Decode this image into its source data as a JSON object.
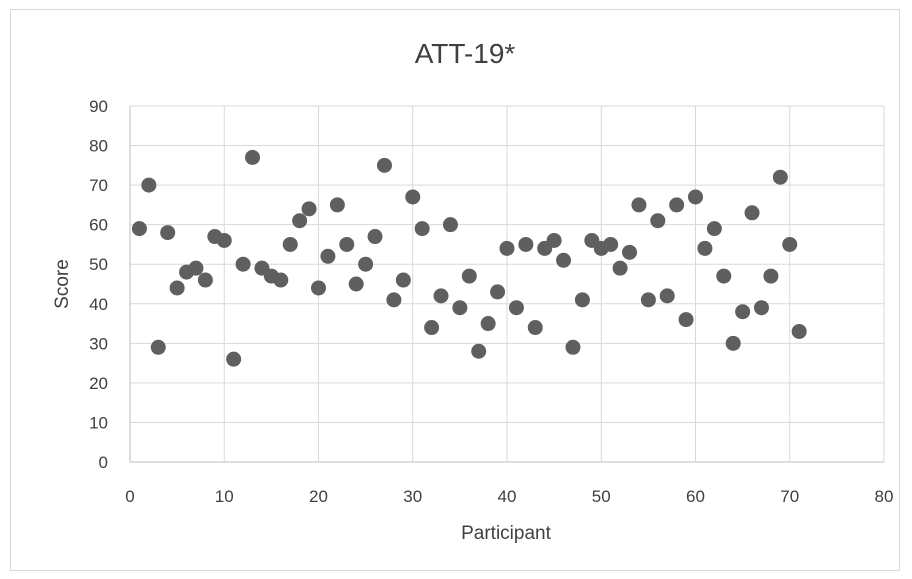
{
  "chart_data": {
    "type": "scatter",
    "title": "ATT-19*",
    "xlabel": "Participant",
    "ylabel": "Score",
    "xlim": [
      0,
      80
    ],
    "ylim": [
      0,
      90
    ],
    "x_ticks": [
      0,
      10,
      20,
      30,
      40,
      50,
      60,
      70,
      80
    ],
    "y_ticks": [
      0,
      10,
      20,
      30,
      40,
      50,
      60,
      70,
      80,
      90
    ],
    "grid": true,
    "legend": "none",
    "marker_color": "#5f5f5f",
    "x": [
      1,
      2,
      3,
      4,
      5,
      6,
      7,
      8,
      9,
      10,
      11,
      12,
      13,
      14,
      15,
      16,
      17,
      18,
      19,
      20,
      21,
      22,
      23,
      24,
      25,
      26,
      27,
      28,
      29,
      30,
      31,
      32,
      33,
      34,
      35,
      36,
      37,
      38,
      39,
      40,
      41,
      42,
      43,
      44,
      45,
      46,
      47,
      48,
      49,
      50,
      51,
      52,
      53,
      54,
      55,
      56,
      57,
      58,
      59,
      60,
      61,
      62,
      63,
      64,
      65,
      66,
      67,
      68,
      69,
      70,
      71
    ],
    "y": [
      59,
      70,
      29,
      58,
      44,
      48,
      49,
      46,
      57,
      56,
      26,
      50,
      77,
      49,
      47,
      46,
      55,
      61,
      64,
      44,
      52,
      65,
      55,
      45,
      50,
      57,
      75,
      41,
      46,
      67,
      59,
      34,
      42,
      60,
      39,
      47,
      28,
      35,
      43,
      54,
      39,
      55,
      34,
      54,
      56,
      51,
      29,
      41,
      56,
      54,
      55,
      49,
      53,
      65,
      41,
      61,
      42,
      65,
      36,
      67,
      54,
      59,
      47,
      30,
      38,
      63,
      39,
      47,
      72,
      55,
      33
    ]
  }
}
